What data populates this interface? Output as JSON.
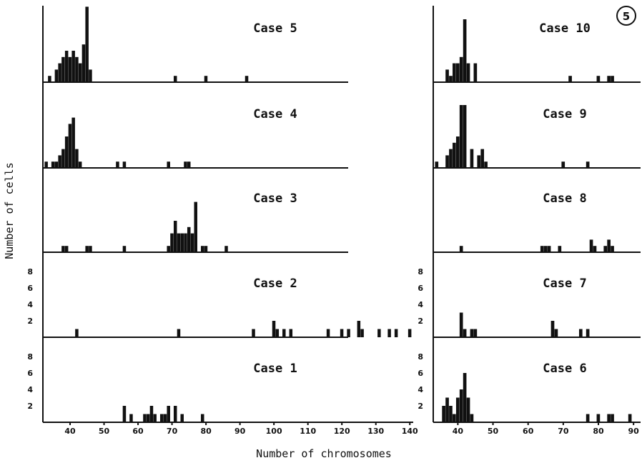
{
  "figure_label": "5",
  "xlabel": "Number of chromosomes",
  "ylabel": "Number of cells",
  "left_xticks": [
    "40",
    "50",
    "60",
    "70",
    "80",
    "90",
    "100",
    "110",
    "120",
    "130",
    "140"
  ],
  "right_xticks": [
    "40",
    "50",
    "60",
    "70",
    "80",
    "90"
  ],
  "yticks": [
    "2",
    "4",
    "6",
    "8"
  ],
  "chart_data": [
    {
      "type": "bar",
      "title": "Case 5",
      "column": "left",
      "xlim": [
        32,
        141
      ],
      "x": [
        34,
        36,
        37,
        38,
        39,
        40,
        41,
        42,
        43,
        44,
        45,
        46,
        71,
        80,
        92
      ],
      "values": [
        1,
        2,
        3,
        4,
        5,
        4,
        5,
        4,
        3,
        6,
        12,
        2,
        1,
        1,
        1
      ]
    },
    {
      "type": "bar",
      "title": "Case 4",
      "column": "left",
      "xlim": [
        32,
        141
      ],
      "x": [
        33,
        35,
        36,
        37,
        38,
        39,
        40,
        41,
        42,
        43,
        54,
        56,
        69,
        74,
        75
      ],
      "values": [
        1,
        1,
        1,
        2,
        3,
        5,
        7,
        8,
        3,
        1,
        1,
        1,
        1,
        1,
        1
      ]
    },
    {
      "type": "bar",
      "title": "Case 3",
      "column": "left",
      "xlim": [
        32,
        141
      ],
      "x": [
        38,
        39,
        45,
        46,
        56,
        69,
        70,
        71,
        72,
        73,
        74,
        75,
        76,
        77,
        79,
        80,
        86
      ],
      "values": [
        1,
        1,
        1,
        1,
        1,
        1,
        3,
        5,
        3,
        3,
        3,
        4,
        3,
        8,
        1,
        1,
        1
      ]
    },
    {
      "type": "bar",
      "title": "Case 2",
      "column": "left",
      "xlim": [
        32,
        141
      ],
      "ylim": [
        0,
        9
      ],
      "x": [
        42,
        72,
        94,
        100,
        101,
        103,
        105,
        116,
        120,
        122,
        125,
        126,
        131,
        134,
        136,
        140
      ],
      "values": [
        1,
        1,
        1,
        2,
        1,
        1,
        1,
        1,
        1,
        1,
        2,
        1,
        1,
        1,
        1,
        1
      ]
    },
    {
      "type": "bar",
      "title": "Case 1",
      "column": "left",
      "xlim": [
        32,
        141
      ],
      "ylim": [
        0,
        9
      ],
      "x": [
        56,
        58,
        62,
        63,
        64,
        65,
        67,
        68,
        69,
        71,
        73,
        79
      ],
      "values": [
        2,
        1,
        1,
        1,
        2,
        1,
        1,
        1,
        2,
        2,
        1,
        1
      ]
    },
    {
      "type": "bar",
      "title": "Case 10",
      "column": "right",
      "xlim": [
        33,
        92
      ],
      "x": [
        37,
        38,
        39,
        40,
        41,
        42,
        43,
        45,
        72,
        80,
        83,
        84
      ],
      "values": [
        2,
        1,
        3,
        3,
        4,
        10,
        3,
        3,
        1,
        1,
        1,
        1
      ]
    },
    {
      "type": "bar",
      "title": "Case 9",
      "column": "right",
      "xlim": [
        33,
        92
      ],
      "x": [
        34,
        37,
        38,
        39,
        40,
        41,
        42,
        44,
        46,
        47,
        48,
        70,
        77
      ],
      "values": [
        1,
        2,
        3,
        4,
        5,
        10,
        10,
        3,
        2,
        3,
        1,
        1,
        1
      ]
    },
    {
      "type": "bar",
      "title": "Case 8",
      "column": "right",
      "xlim": [
        33,
        92
      ],
      "x": [
        41,
        64,
        65,
        66,
        69,
        78,
        79,
        82,
        83,
        84
      ],
      "values": [
        1,
        1,
        1,
        1,
        1,
        2,
        1,
        1,
        2,
        1
      ]
    },
    {
      "type": "bar",
      "title": "Case 7",
      "column": "right",
      "xlim": [
        33,
        92
      ],
      "ylim": [
        0,
        9
      ],
      "x": [
        41,
        42,
        44,
        45,
        67,
        68,
        75,
        77
      ],
      "values": [
        3,
        1,
        1,
        1,
        2,
        1,
        1,
        1
      ]
    },
    {
      "type": "bar",
      "title": "Case 6",
      "column": "right",
      "xlim": [
        33,
        92
      ],
      "ylim": [
        0,
        9
      ],
      "x": [
        36,
        37,
        38,
        39,
        40,
        41,
        42,
        43,
        44,
        77,
        80,
        83,
        84,
        89
      ],
      "values": [
        2,
        3,
        2,
        1,
        3,
        4,
        6,
        3,
        1,
        1,
        1,
        1,
        1,
        1
      ]
    }
  ]
}
